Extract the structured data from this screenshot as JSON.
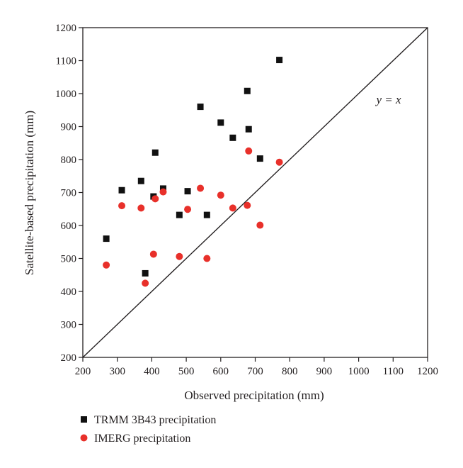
{
  "chart_data": {
    "type": "scatter",
    "title": "",
    "xlabel": "Observed precipitation (mm)",
    "ylabel": "Satellite-based precipitation (mm)",
    "xlim": [
      200,
      1200
    ],
    "ylim": [
      200,
      1200
    ],
    "xticks": [
      "200",
      "300",
      "400",
      "500",
      "600",
      "700",
      "800",
      "900",
      "1000",
      "1100",
      "1200"
    ],
    "yticks": [
      "200",
      "300",
      "400",
      "500",
      "600",
      "700",
      "800",
      "900",
      "1000",
      "1100",
      "1200"
    ],
    "grid": false,
    "legend_position": "bottom-left",
    "annotation": {
      "text": "y = x",
      "line": [
        [
          200,
          200
        ],
        [
          1200,
          1200
        ]
      ]
    },
    "series": [
      {
        "name": "TRMM 3B43 precipitation",
        "marker": "square",
        "color": "#111111",
        "points": [
          [
            268,
            560
          ],
          [
            313,
            707
          ],
          [
            369,
            735
          ],
          [
            381,
            455
          ],
          [
            405,
            688
          ],
          [
            410,
            821
          ],
          [
            433,
            712
          ],
          [
            480,
            632
          ],
          [
            504,
            704
          ],
          [
            541,
            960
          ],
          [
            560,
            632
          ],
          [
            600,
            912
          ],
          [
            635,
            866
          ],
          [
            677,
            1008
          ],
          [
            681,
            892
          ],
          [
            714,
            803
          ],
          [
            770,
            1102
          ]
        ]
      },
      {
        "name": "IMERG precipitation",
        "marker": "circle",
        "color": "#e8302a",
        "points": [
          [
            268,
            480
          ],
          [
            313,
            660
          ],
          [
            369,
            653
          ],
          [
            381,
            425
          ],
          [
            405,
            513
          ],
          [
            410,
            681
          ],
          [
            433,
            702
          ],
          [
            480,
            506
          ],
          [
            504,
            649
          ],
          [
            541,
            713
          ],
          [
            560,
            500
          ],
          [
            600,
            692
          ],
          [
            635,
            653
          ],
          [
            677,
            661
          ],
          [
            681,
            826
          ],
          [
            714,
            601
          ],
          [
            770,
            792
          ]
        ]
      }
    ]
  }
}
